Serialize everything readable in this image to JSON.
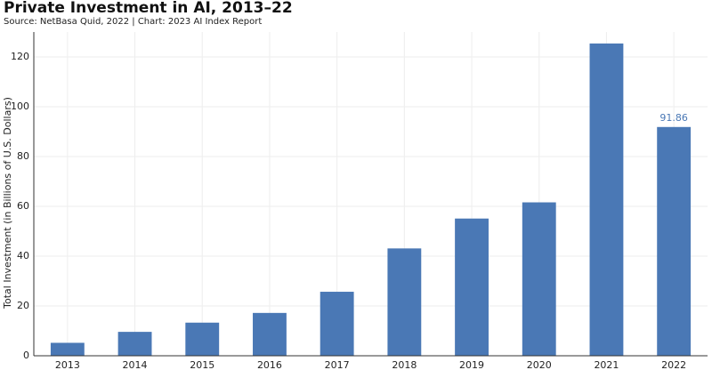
{
  "chart_data": {
    "type": "bar",
    "title": "Private Investment in AI, 2013–22",
    "subtitle": "Source: NetBasa Quid, 2022 | Chart: 2023 AI Index Report",
    "y_label": "Total Investment (in Billions of U.S. Dollars)",
    "categories": [
      "2013",
      "2014",
      "2015",
      "2016",
      "2017",
      "2018",
      "2019",
      "2020",
      "2021",
      "2022"
    ],
    "values": [
      5.2,
      9.6,
      13.3,
      17.2,
      25.7,
      43.1,
      55.1,
      61.6,
      125.4,
      91.86
    ],
    "value_labels": [
      null,
      null,
      null,
      null,
      null,
      null,
      null,
      null,
      null,
      "91.86"
    ],
    "color": "#4a78b5",
    "ylim": [
      0,
      130
    ],
    "yticks": [
      0,
      20,
      40,
      60,
      80,
      100,
      120
    ],
    "grid": true
  }
}
